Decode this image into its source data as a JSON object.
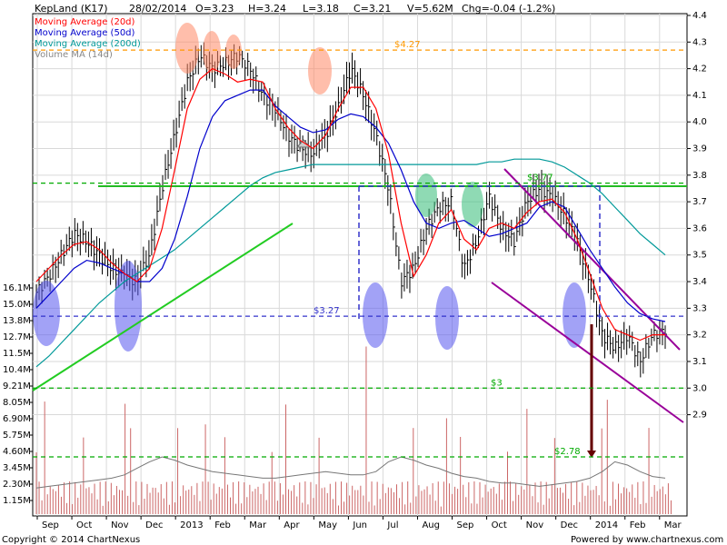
{
  "header": {
    "symbol": "KepLand (K17)",
    "date": "28/02/2014",
    "open": "O=3.23",
    "high": "H=3.24",
    "low": "L=3.18",
    "close": "C=3.21",
    "volume": "V=5.62M",
    "change": "Chg=-0.04 (-1.2%)"
  },
  "legend": [
    {
      "label": "Moving Average (20d)",
      "color": "#ff0000"
    },
    {
      "label": "Moving Average (50d)",
      "color": "#0000cc"
    },
    {
      "label": "Moving Average (200d)",
      "color": "#009999"
    },
    {
      "label": "Volume MA (14d)",
      "color": "#888888"
    }
  ],
  "footer": {
    "copyright": "Copyright © 2014 ChartNexus",
    "powered": "Powered by www.chartnexus.com"
  },
  "colors": {
    "price_bar": "#000000",
    "volume_bar": "#cc6666",
    "grid": "#d9d9d9",
    "support_blue": "#3333cc",
    "trend_green": "#22cc22",
    "channel_purple": "#990099",
    "orange_level": "#ff9900",
    "arrow": "#660000"
  },
  "chart_data": {
    "type": "candlestick",
    "x_axis": {
      "labels": [
        "Sep",
        "Oct",
        "Nov",
        "Dec",
        "2013",
        "Feb",
        "Mar",
        "Apr",
        "May",
        "Jun",
        "Jul",
        "Aug",
        "Sep",
        "Oct",
        "Nov",
        "Dec",
        "2014",
        "Feb",
        "Mar"
      ]
    },
    "price_axis": {
      "range": [
        2.82,
        4.4
      ],
      "ticks": [
        "4.4",
        "4.3",
        "4.2",
        "4.1",
        "4.0",
        "3.9",
        "3.8",
        "3.7",
        "3.6",
        "3.5",
        "3.4",
        "3.3",
        "3.2",
        "3.1",
        "3.0",
        "2.9"
      ]
    },
    "volume_axis": {
      "ticks": [
        "16.1M",
        "15.0M",
        "13.8M",
        "12.7M",
        "11.5M",
        "10.4M",
        "9.21M",
        "8.05M",
        "6.90M",
        "5.75M",
        "4.60M",
        "3.45M",
        "2.30M",
        "1.15M"
      ]
    },
    "price_close": [
      3.36,
      3.42,
      3.5,
      3.58,
      3.55,
      3.5,
      3.45,
      3.42,
      3.4,
      3.5,
      3.75,
      3.95,
      4.15,
      4.25,
      4.2,
      4.22,
      4.25,
      4.2,
      4.1,
      4.05,
      3.95,
      3.9,
      3.88,
      3.95,
      4.05,
      4.2,
      4.1,
      3.95,
      3.75,
      3.4,
      3.45,
      3.6,
      3.68,
      3.7,
      3.45,
      3.55,
      3.72,
      3.6,
      3.55,
      3.7,
      3.75,
      3.72,
      3.65,
      3.55,
      3.4,
      3.2,
      3.15,
      3.2,
      3.1,
      3.2,
      3.22
    ],
    "ma20": [
      3.4,
      3.45,
      3.5,
      3.54,
      3.55,
      3.52,
      3.47,
      3.43,
      3.4,
      3.45,
      3.6,
      3.82,
      4.05,
      4.16,
      4.2,
      4.18,
      4.15,
      4.16,
      4.15,
      4.05,
      3.98,
      3.93,
      3.9,
      3.95,
      4.05,
      4.13,
      4.13,
      4.05,
      3.88,
      3.62,
      3.42,
      3.5,
      3.62,
      3.67,
      3.56,
      3.52,
      3.6,
      3.62,
      3.6,
      3.66,
      3.7,
      3.71,
      3.66,
      3.56,
      3.43,
      3.3,
      3.22,
      3.2,
      3.18,
      3.2,
      3.2
    ],
    "ma50": [
      3.3,
      3.35,
      3.4,
      3.45,
      3.48,
      3.47,
      3.45,
      3.43,
      3.4,
      3.4,
      3.45,
      3.56,
      3.72,
      3.9,
      4.02,
      4.08,
      4.1,
      4.12,
      4.12,
      4.06,
      4.02,
      3.98,
      3.96,
      3.97,
      4.01,
      4.03,
      4.02,
      3.98,
      3.92,
      3.82,
      3.7,
      3.62,
      3.6,
      3.62,
      3.63,
      3.6,
      3.57,
      3.58,
      3.6,
      3.62,
      3.68,
      3.7,
      3.68,
      3.6,
      3.52,
      3.45,
      3.38,
      3.32,
      3.28,
      3.26,
      3.25
    ],
    "ma200": [
      3.08,
      3.12,
      3.17,
      3.22,
      3.27,
      3.32,
      3.36,
      3.4,
      3.43,
      3.46,
      3.49,
      3.52,
      3.56,
      3.6,
      3.64,
      3.68,
      3.72,
      3.76,
      3.79,
      3.81,
      3.82,
      3.83,
      3.84,
      3.84,
      3.84,
      3.84,
      3.84,
      3.84,
      3.84,
      3.84,
      3.84,
      3.84,
      3.84,
      3.84,
      3.84,
      3.84,
      3.85,
      3.85,
      3.86,
      3.86,
      3.86,
      3.85,
      3.83,
      3.8,
      3.77,
      3.73,
      3.68,
      3.63,
      3.58,
      3.54,
      3.5
    ],
    "volume_ma": [
      1.6,
      1.7,
      1.8,
      1.9,
      2.0,
      2.1,
      2.2,
      2.4,
      2.8,
      3.2,
      3.5,
      3.3,
      3.0,
      2.8,
      2.6,
      2.5,
      2.4,
      2.3,
      2.2,
      2.2,
      2.3,
      2.4,
      2.5,
      2.6,
      2.5,
      2.4,
      2.4,
      2.6,
      3.2,
      3.5,
      3.3,
      3.0,
      2.8,
      2.5,
      2.3,
      2.2,
      2.0,
      1.9,
      1.9,
      1.8,
      1.7,
      1.8,
      1.9,
      2.0,
      2.2,
      2.6,
      3.2,
      3.0,
      2.6,
      2.3,
      2.2
    ],
    "levels": [
      {
        "label": "$4.27",
        "value": 4.27,
        "color": "#ff9900"
      },
      {
        "label": "$3.77",
        "value": 3.77,
        "color": "#00aa00"
      },
      {
        "label": "$3.27",
        "value": 3.27,
        "color": "#3333cc"
      },
      {
        "label": "$3",
        "value": 3.0,
        "color": "#00aa00"
      },
      {
        "label": "$2.78",
        "value": 2.78,
        "color": "#00aa00"
      }
    ]
  }
}
